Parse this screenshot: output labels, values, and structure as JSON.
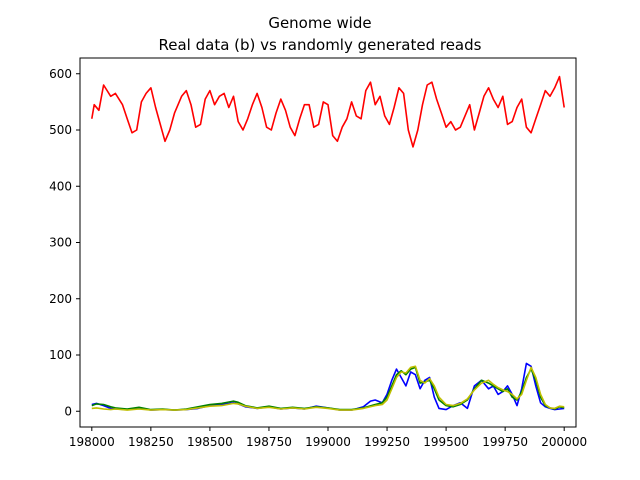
{
  "chart_data": {
    "type": "line",
    "title_line1": "Genome wide",
    "title_line2": "Real data (b) vs randomly generated reads",
    "xlabel": "",
    "ylabel": "",
    "xlim": [
      197950,
      200050
    ],
    "ylim": [
      -28,
      628
    ],
    "x_ticks": [
      198000,
      198250,
      198500,
      198750,
      199000,
      199250,
      199500,
      199750,
      200000
    ],
    "y_ticks": [
      0,
      100,
      200,
      300,
      400,
      500,
      600
    ],
    "grid": false,
    "legend": "none",
    "series": [
      {
        "color": "#ff0000",
        "x": [
          198000,
          198010,
          198030,
          198050,
          198080,
          198100,
          198130,
          198150,
          198170,
          198190,
          198210,
          198230,
          198250,
          198270,
          198290,
          198310,
          198330,
          198350,
          198380,
          198400,
          198420,
          198440,
          198460,
          198480,
          198500,
          198520,
          198540,
          198560,
          198580,
          198600,
          198620,
          198640,
          198660,
          198680,
          198700,
          198720,
          198740,
          198760,
          198780,
          198800,
          198820,
          198840,
          198860,
          198880,
          198900,
          198920,
          198940,
          198960,
          198980,
          199000,
          199020,
          199040,
          199060,
          199080,
          199100,
          199120,
          199140,
          199160,
          199180,
          199200,
          199220,
          199240,
          199260,
          199280,
          199300,
          199320,
          199340,
          199360,
          199380,
          199400,
          199420,
          199440,
          199460,
          199480,
          199500,
          199520,
          199540,
          199560,
          199580,
          199600,
          199620,
          199640,
          199660,
          199680,
          199700,
          199720,
          199740,
          199760,
          199780,
          199800,
          199820,
          199840,
          199860,
          199880,
          199900,
          199920,
          199940,
          199960,
          199980,
          200000
        ],
        "values": [
          520,
          545,
          535,
          580,
          560,
          565,
          545,
          520,
          495,
          500,
          550,
          565,
          575,
          540,
          510,
          480,
          500,
          530,
          560,
          570,
          545,
          505,
          510,
          555,
          570,
          545,
          560,
          565,
          540,
          560,
          515,
          500,
          520,
          545,
          565,
          540,
          505,
          500,
          530,
          555,
          535,
          505,
          490,
          520,
          545,
          545,
          505,
          510,
          550,
          545,
          490,
          480,
          505,
          520,
          550,
          525,
          520,
          570,
          585,
          545,
          560,
          525,
          510,
          540,
          575,
          565,
          500,
          470,
          500,
          545,
          580,
          585,
          555,
          530,
          505,
          515,
          500,
          505,
          525,
          545,
          500,
          530,
          560,
          575,
          555,
          540,
          560,
          510,
          515,
          540,
          555,
          505,
          495,
          520,
          545,
          570,
          560,
          575,
          595,
          540
        ]
      },
      {
        "color": "#0000ff",
        "x": [
          198000,
          198020,
          198050,
          198080,
          198100,
          198150,
          198200,
          198250,
          198300,
          198350,
          198400,
          198450,
          198500,
          198550,
          198600,
          198620,
          198650,
          198700,
          198750,
          198800,
          198850,
          198900,
          198950,
          199000,
          199050,
          199100,
          199150,
          199180,
          199200,
          199230,
          199250,
          199270,
          199290,
          199310,
          199330,
          199350,
          199370,
          199390,
          199410,
          199430,
          199450,
          199470,
          199500,
          199530,
          199560,
          199590,
          199620,
          199650,
          199680,
          199700,
          199720,
          199740,
          199760,
          199780,
          199800,
          199820,
          199840,
          199860,
          199880,
          199900,
          199920,
          199940,
          199960,
          199980,
          200000
        ],
        "values": [
          12,
          14,
          10,
          5,
          4,
          3,
          6,
          2,
          3,
          2,
          3,
          5,
          10,
          12,
          15,
          13,
          8,
          5,
          8,
          4,
          6,
          4,
          9,
          6,
          2,
          2,
          8,
          18,
          20,
          15,
          30,
          55,
          75,
          60,
          45,
          70,
          65,
          40,
          55,
          60,
          25,
          5,
          3,
          10,
          15,
          5,
          45,
          55,
          40,
          45,
          30,
          35,
          45,
          30,
          10,
          40,
          85,
          80,
          45,
          15,
          8,
          5,
          3,
          4,
          5
        ]
      },
      {
        "color": "#008000",
        "x": [
          198000,
          198020,
          198050,
          198080,
          198100,
          198150,
          198200,
          198250,
          198300,
          198350,
          198400,
          198450,
          198500,
          198550,
          198600,
          198620,
          198650,
          198700,
          198750,
          198800,
          198850,
          198900,
          198950,
          199000,
          199050,
          199100,
          199150,
          199200,
          199230,
          199250,
          199270,
          199290,
          199310,
          199330,
          199350,
          199370,
          199390,
          199410,
          199430,
          199450,
          199470,
          199500,
          199530,
          199560,
          199590,
          199620,
          199650,
          199680,
          199700,
          199720,
          199740,
          199760,
          199780,
          199800,
          199820,
          199840,
          199860,
          199880,
          199900,
          199920,
          199940,
          199960,
          199980,
          200000
        ],
        "values": [
          10,
          13,
          12,
          8,
          6,
          4,
          7,
          3,
          4,
          2,
          4,
          8,
          12,
          14,
          18,
          16,
          10,
          6,
          9,
          5,
          7,
          5,
          8,
          6,
          3,
          3,
          6,
          12,
          15,
          25,
          45,
          65,
          72,
          65,
          75,
          78,
          50,
          52,
          55,
          40,
          20,
          10,
          8,
          12,
          20,
          40,
          55,
          50,
          45,
          40,
          35,
          40,
          25,
          20,
          35,
          60,
          75,
          55,
          25,
          10,
          6,
          4,
          8,
          6
        ]
      },
      {
        "color": "#bfbf00",
        "x": [
          198000,
          198020,
          198050,
          198080,
          198100,
          198150,
          198200,
          198250,
          198300,
          198350,
          198400,
          198450,
          198500,
          198550,
          198600,
          198620,
          198650,
          198700,
          198750,
          198800,
          198850,
          198900,
          198950,
          199000,
          199050,
          199100,
          199150,
          199200,
          199230,
          199250,
          199270,
          199290,
          199310,
          199330,
          199350,
          199370,
          199390,
          199410,
          199430,
          199450,
          199470,
          199500,
          199530,
          199560,
          199590,
          199620,
          199650,
          199680,
          199700,
          199720,
          199740,
          199760,
          199780,
          199800,
          199820,
          199840,
          199860,
          199880,
          199900,
          199920,
          199940,
          199960,
          199980,
          200000
        ],
        "values": [
          5,
          6,
          4,
          3,
          4,
          2,
          4,
          2,
          3,
          2,
          3,
          6,
          9,
          10,
          14,
          13,
          9,
          5,
          7,
          4,
          6,
          4,
          7,
          5,
          2,
          2,
          5,
          10,
          12,
          20,
          40,
          60,
          70,
          68,
          78,
          80,
          55,
          50,
          58,
          45,
          25,
          12,
          10,
          14,
          22,
          38,
          50,
          55,
          48,
          42,
          38,
          35,
          30,
          22,
          30,
          55,
          78,
          60,
          30,
          12,
          6,
          5,
          9,
          8
        ]
      }
    ]
  }
}
